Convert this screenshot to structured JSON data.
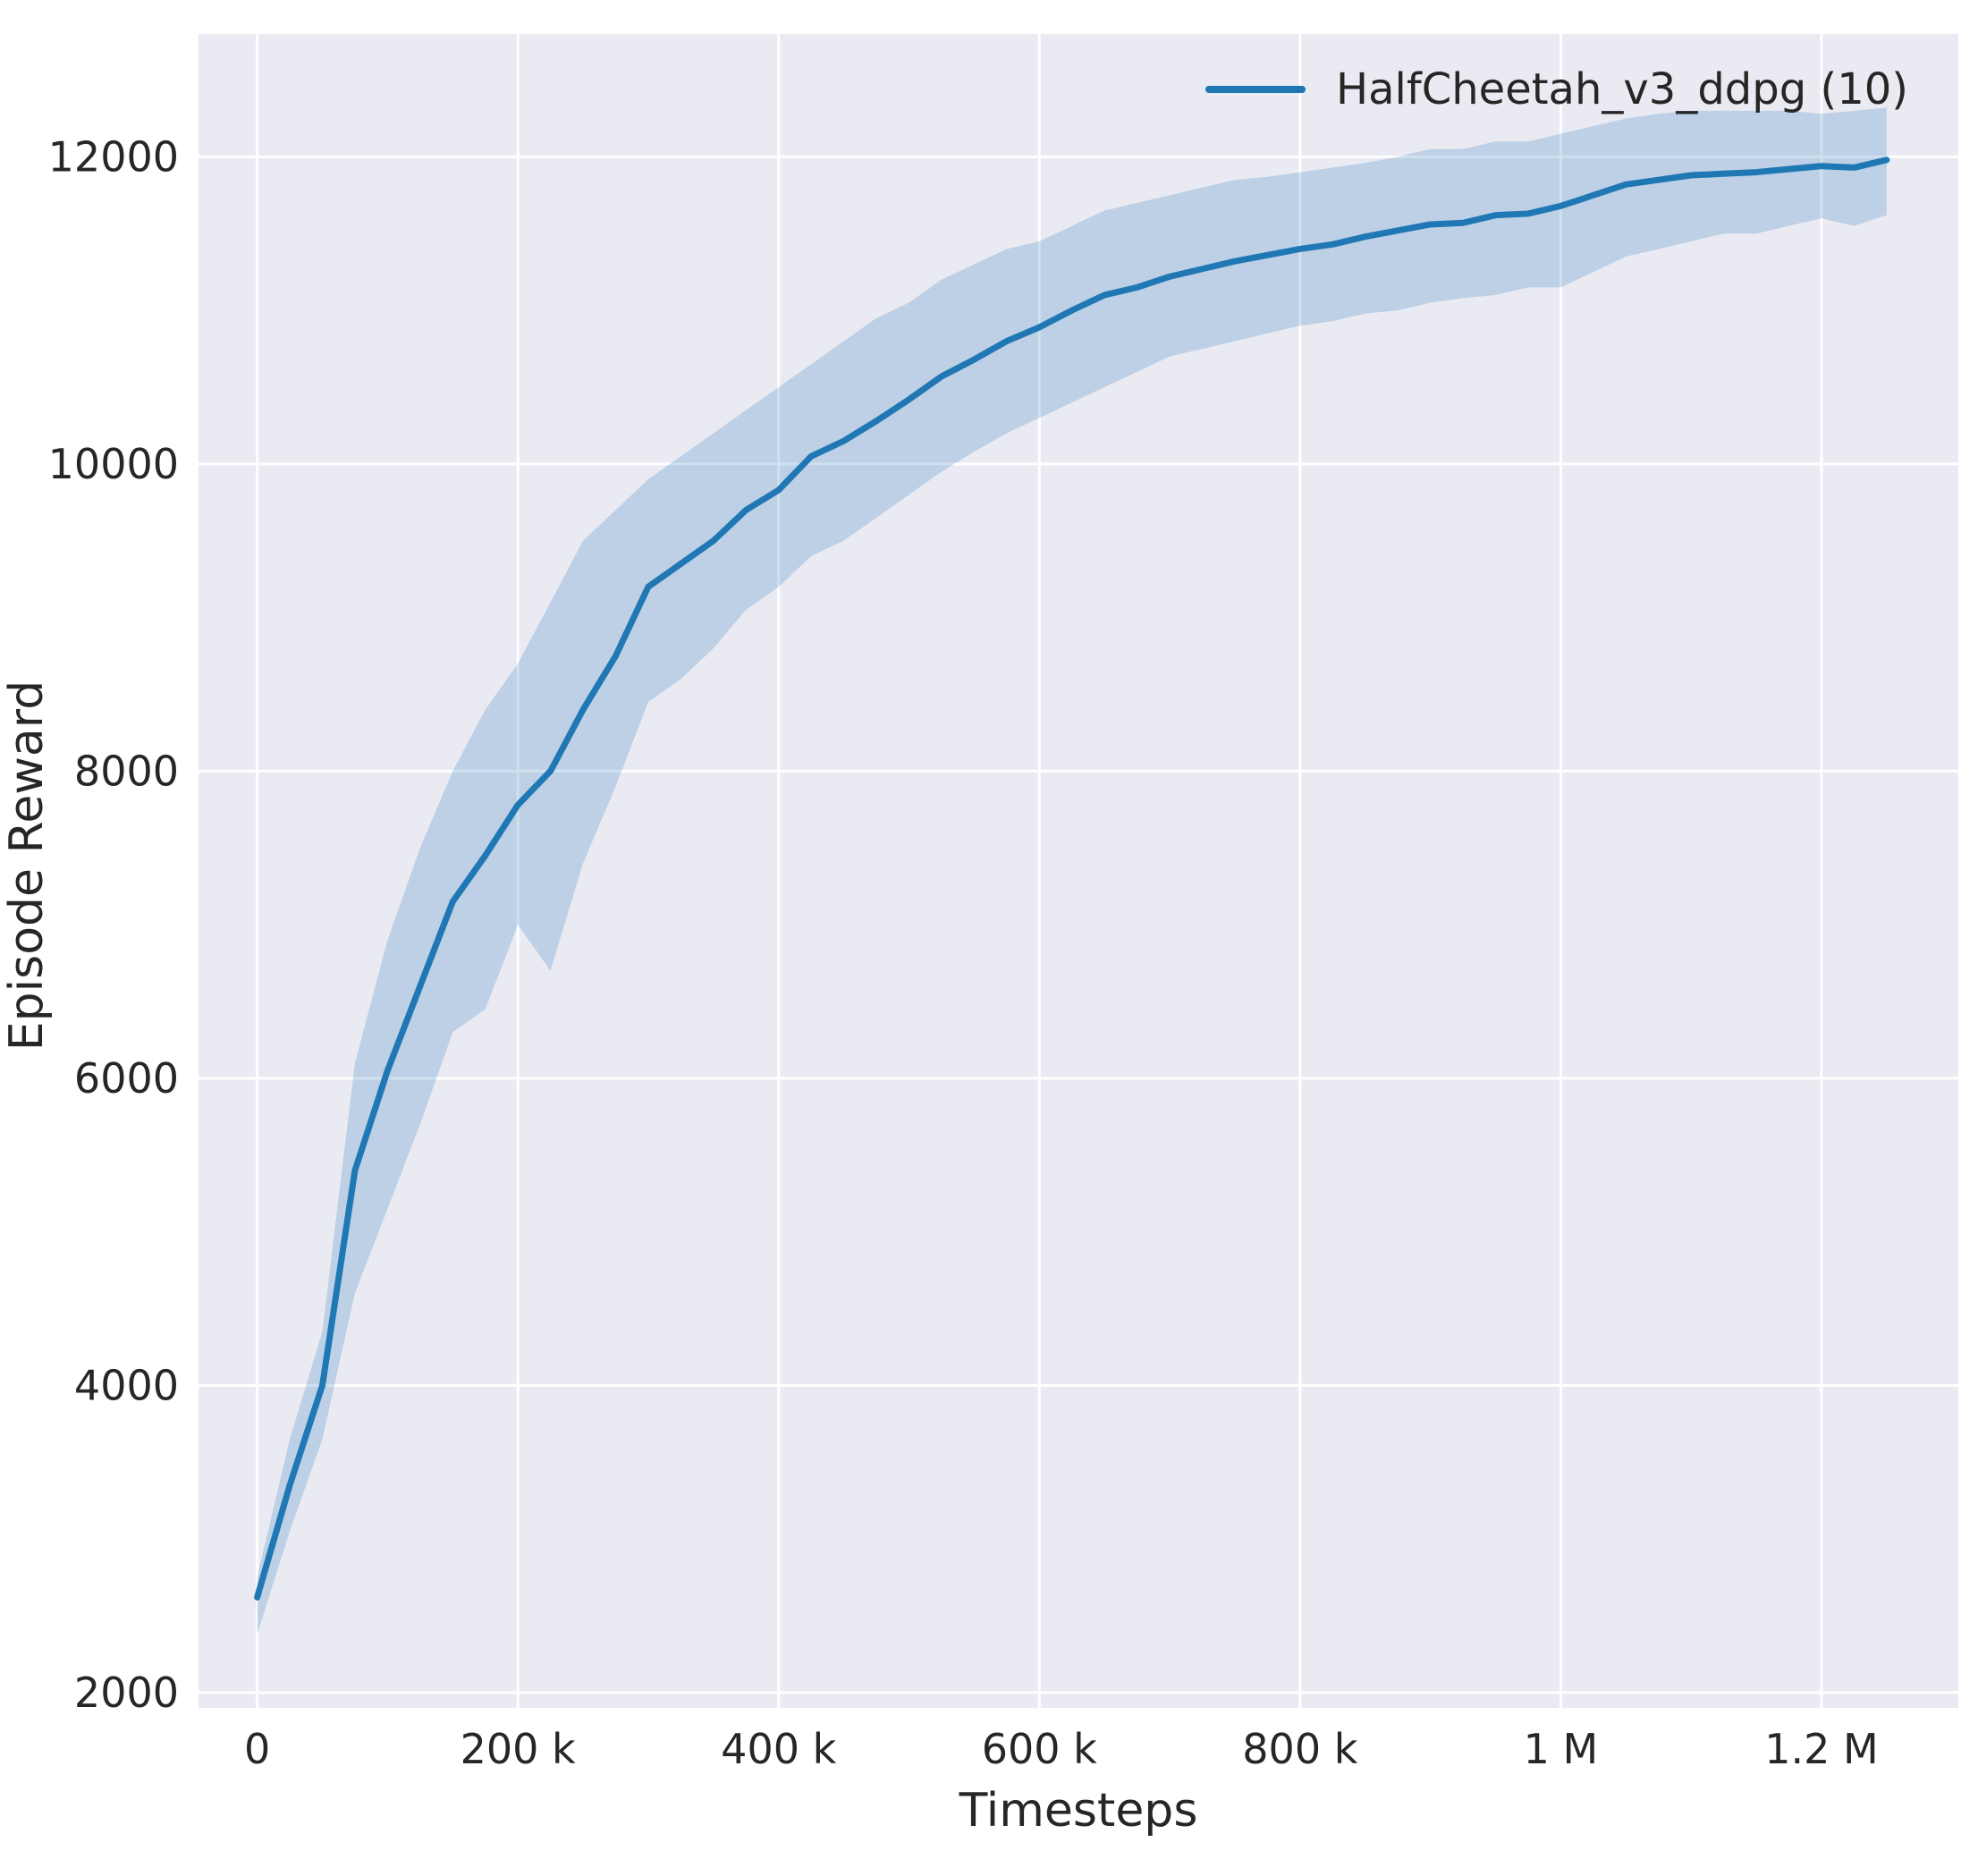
{
  "chart_data": {
    "type": "line",
    "title": "",
    "xlabel": "Timesteps",
    "ylabel": "Episode Reward",
    "xlim": [
      -45000,
      1305000
    ],
    "ylim": [
      1900,
      12800
    ],
    "grid": true,
    "legend_position": "upper right",
    "background_color": "#eaeaf2",
    "grid_color": "#ffffff",
    "tick_label_color": "#262626",
    "x_ticks": [
      {
        "value": 0,
        "label": "0"
      },
      {
        "value": 200000,
        "label": "200 k"
      },
      {
        "value": 400000,
        "label": "400 k"
      },
      {
        "value": 600000,
        "label": "600 k"
      },
      {
        "value": 800000,
        "label": "800 k"
      },
      {
        "value": 1000000,
        "label": "1 M"
      },
      {
        "value": 1200000,
        "label": "1.2 M"
      }
    ],
    "y_ticks": [
      {
        "value": 2000,
        "label": "2000"
      },
      {
        "value": 4000,
        "label": "4000"
      },
      {
        "value": 6000,
        "label": "6000"
      },
      {
        "value": 8000,
        "label": "8000"
      },
      {
        "value": 10000,
        "label": "10000"
      },
      {
        "value": 12000,
        "label": "12000"
      }
    ],
    "series": [
      {
        "name": "HalfCheetah_v3_ddpg (10)",
        "color": "#1f77b4",
        "band_color": "#1f77b4",
        "band_opacity": 0.22,
        "x": [
          0,
          25000,
          50000,
          75000,
          100000,
          125000,
          150000,
          175000,
          200000,
          225000,
          250000,
          275000,
          300000,
          325000,
          350000,
          375000,
          400000,
          425000,
          450000,
          475000,
          500000,
          525000,
          550000,
          575000,
          600000,
          625000,
          650000,
          675000,
          700000,
          725000,
          750000,
          775000,
          800000,
          825000,
          850000,
          875000,
          900000,
          925000,
          950000,
          975000,
          1000000,
          1025000,
          1050000,
          1075000,
          1100000,
          1125000,
          1150000,
          1175000,
          1200000,
          1225000,
          1250000
        ],
        "y": [
          2620,
          3350,
          4000,
          5400,
          6050,
          6600,
          7150,
          7450,
          7780,
          8000,
          8400,
          8750,
          9200,
          9350,
          9500,
          9700,
          9830,
          10050,
          10150,
          10280,
          10420,
          10570,
          10680,
          10800,
          10890,
          11000,
          11100,
          11150,
          11220,
          11270,
          11320,
          11360,
          11400,
          11430,
          11480,
          11520,
          11560,
          11570,
          11620,
          11630,
          11680,
          11750,
          11820,
          11850,
          11880,
          11890,
          11900,
          11920,
          11940,
          11930,
          11980
        ],
        "band_lower": [
          2380,
          3050,
          3650,
          4600,
          5150,
          5700,
          6300,
          6450,
          7000,
          6700,
          7400,
          7900,
          8450,
          8600,
          8800,
          9050,
          9200,
          9400,
          9500,
          9650,
          9800,
          9950,
          10080,
          10200,
          10300,
          10400,
          10500,
          10600,
          10700,
          10750,
          10800,
          10850,
          10900,
          10930,
          10980,
          11000,
          11050,
          11080,
          11100,
          11150,
          11150,
          11250,
          11350,
          11400,
          11450,
          11500,
          11500,
          11550,
          11600,
          11550,
          11620
        ],
        "band_upper": [
          2750,
          3650,
          4350,
          6100,
          6900,
          7500,
          8000,
          8400,
          8700,
          9100,
          9500,
          9700,
          9900,
          10050,
          10200,
          10350,
          10500,
          10650,
          10800,
          10950,
          11050,
          11200,
          11300,
          11400,
          11450,
          11550,
          11650,
          11700,
          11750,
          11800,
          11850,
          11870,
          11900,
          11930,
          11960,
          12000,
          12050,
          12050,
          12100,
          12100,
          12150,
          12200,
          12250,
          12280,
          12300,
          12300,
          12300,
          12300,
          12280,
          12300,
          12320
        ]
      }
    ]
  }
}
